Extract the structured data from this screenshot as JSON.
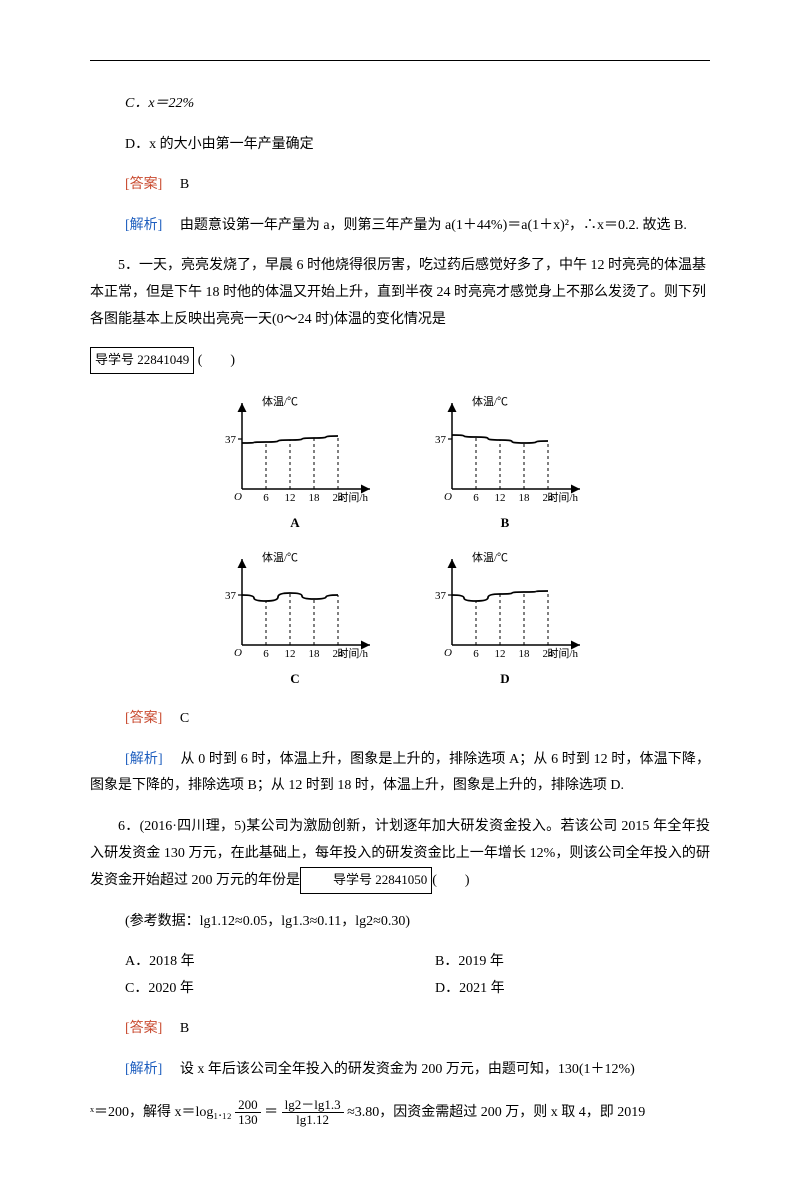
{
  "q_prev": {
    "optC": "C．x＝22%",
    "optD": "D．x 的大小由第一年产量确定",
    "ansLabel": "[答案]",
    "ans": "B",
    "expLabel": "[解析]",
    "exp": "由题意设第一年产量为 a，则第三年产量为 a(1＋44%)＝a(1＋x)²，∴x＝0.2. 故选 B."
  },
  "q5": {
    "stem1": "5．一天，亮亮发烧了，早晨 6 时他烧得很厉害，吃过药后感觉好多了，中午 12 时亮亮的体温基本正常，但是下午 18 时他的体温又开始上升，直到半夜 24 时亮亮才感觉身上不那么发烫了。则下列各图能基本上反映出亮亮一天(0～24 时)体温的变化情况是",
    "boxText": "导学号 22841049",
    "paren": "(　　)",
    "ansLabel": "[答案]",
    "ans": "C",
    "expLabel": "[解析]",
    "exp": "从 0 时到 6 时，体温上升，图象是上升的，排除选项 A；从 6 时到 12 时，体温下降，图象是下降的，排除选项 B；从 12 时到 18 时，体温上升，图象是上升的，排除选项 D.",
    "chartCommon": {
      "ylabel": "体温/℃",
      "xlabel": "时间/h",
      "ytick": "37",
      "xticks": [
        "6",
        "12",
        "18",
        "24"
      ],
      "axis_color": "#000000",
      "dash_color": "#000000",
      "line_color": "#000000",
      "background": "#ffffff",
      "font_pt": 11
    },
    "charts": {
      "A": {
        "yvals": [
          54,
          53,
          51,
          49,
          47
        ],
        "tick_y": 50
      },
      "B": {
        "yvals": [
          46,
          48,
          51,
          54,
          52
        ],
        "tick_y": 50
      },
      "C": {
        "yvals": [
          50,
          56,
          48,
          54,
          50
        ],
        "tick_y": 50
      },
      "D": {
        "yvals": [
          50,
          56,
          49,
          47,
          46
        ],
        "tick_y": 50
      }
    }
  },
  "q6": {
    "stem": "6．(2016·四川理，5)某公司为激励创新，计划逐年加大研发资金投入。若该公司 2015 年全年投入研发资金 130 万元，在此基础上，每年投入的研发资金比上一年增长 12%，则该公司全年投入的研发资金开始超过 200 万元的年份是",
    "boxText": "导学号 22841050",
    "paren": "(　　)",
    "ref": "(参考数据：lg1.12≈0.05，lg1.3≈0.11，lg2≈0.30)",
    "optA": "A．2018 年",
    "optB": "B．2019 年",
    "optC": "C．2020 年",
    "optD": "D．2021 年",
    "ansLabel": "[答案]",
    "ans": "B",
    "expLabel": "[解析]",
    "exp1": "设 x 年后该公司全年投入的研发资金为 200 万元，由题可知，130(1＋12%)",
    "exp2a": "ˣ＝200，解得 x＝log₁.₁₂",
    "fr1_num": "200",
    "fr1_den": "130",
    "eqmid": "＝",
    "fr2_num": "lg2－lg1.3",
    "fr2_den": "lg1.12",
    "exp2b": "≈3.80，因资金需超过 200 万，则 x 取 4，即 2019"
  }
}
